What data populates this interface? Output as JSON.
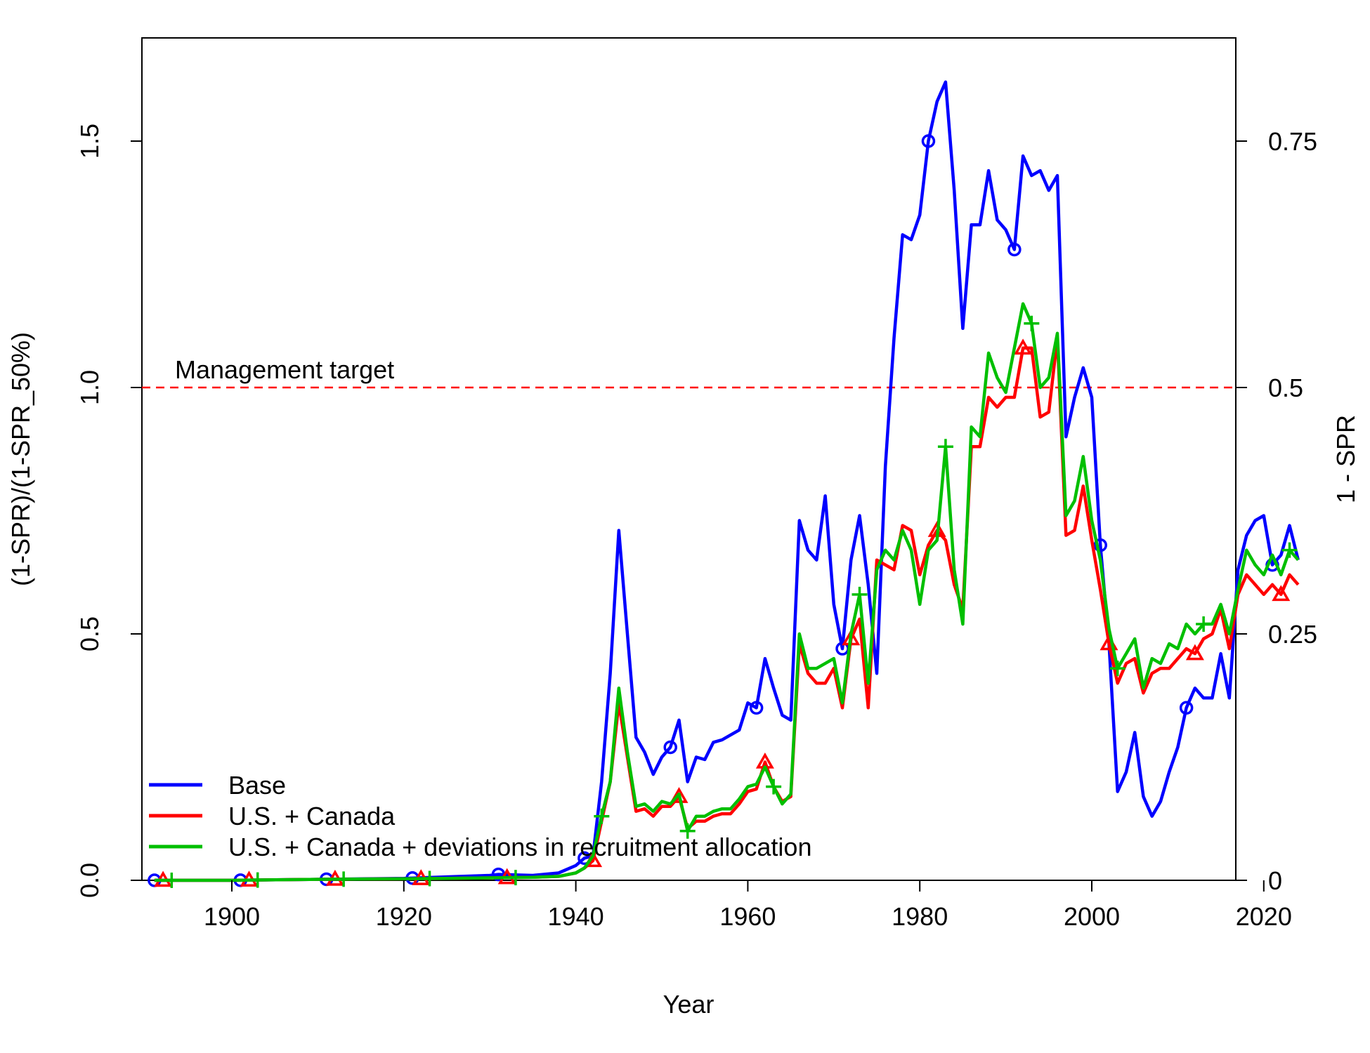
{
  "chart_data": {
    "type": "line",
    "xlabel": "Year",
    "ylabel_left": "(1-SPR)/(1-SPR_50%)",
    "ylabel_right": "1 - SPR",
    "xlim": [
      1890,
      2024
    ],
    "ylim": [
      0,
      1.67
    ],
    "x_ticks": [
      1900,
      1920,
      1940,
      1960,
      1980,
      2000,
      2020
    ],
    "x_tick_labels": [
      "1900",
      "1920",
      "1940",
      "1960",
      "1980",
      "2000",
      "2020"
    ],
    "y_ticks_left": [
      0,
      0.5,
      1.0,
      1.5
    ],
    "y_tick_labels_left": [
      "0.0",
      "0.5",
      "1.0",
      "1.5"
    ],
    "y_ticks_right": [
      0,
      0.5,
      1.0,
      1.5
    ],
    "y_tick_labels_right": [
      "0",
      "0.25",
      "0.5",
      "0.75"
    ],
    "reference_line": {
      "y": 1.0,
      "label": "Management target",
      "color": "#ff0000",
      "style": "dashed"
    },
    "grid": false,
    "legend_position": "bottom-left",
    "series": [
      {
        "name": "Base",
        "color": "#0000ff",
        "marker": "circle",
        "points": [
          [
            1891,
            0
          ],
          [
            1900,
            0
          ],
          [
            1910,
            0.002
          ],
          [
            1920,
            0.004
          ],
          [
            1930,
            0.01
          ],
          [
            1931,
            0.012
          ],
          [
            1935,
            0.01
          ],
          [
            1938,
            0.015
          ],
          [
            1940,
            0.03
          ],
          [
            1941,
            0.045
          ],
          [
            1942,
            0.05
          ],
          [
            1943,
            0.2
          ],
          [
            1944,
            0.42
          ],
          [
            1945,
            0.71
          ],
          [
            1946,
            0.5
          ],
          [
            1947,
            0.29
          ],
          [
            1948,
            0.26
          ],
          [
            1949,
            0.215
          ],
          [
            1950,
            0.25
          ],
          [
            1951,
            0.27
          ],
          [
            1952,
            0.325
          ],
          [
            1953,
            0.2
          ],
          [
            1954,
            0.25
          ],
          [
            1955,
            0.245
          ],
          [
            1956,
            0.28
          ],
          [
            1957,
            0.285
          ],
          [
            1958,
            0.295
          ],
          [
            1959,
            0.305
          ],
          [
            1960,
            0.36
          ],
          [
            1961,
            0.35
          ],
          [
            1962,
            0.45
          ],
          [
            1963,
            0.39
          ],
          [
            1964,
            0.335
          ],
          [
            1965,
            0.325
          ],
          [
            1966,
            0.73
          ],
          [
            1967,
            0.67
          ],
          [
            1968,
            0.65
          ],
          [
            1969,
            0.78
          ],
          [
            1970,
            0.56
          ],
          [
            1971,
            0.47
          ],
          [
            1972,
            0.65
          ],
          [
            1973,
            0.74
          ],
          [
            1974,
            0.6
          ],
          [
            1975,
            0.42
          ],
          [
            1976,
            0.84
          ],
          [
            1977,
            1.1
          ],
          [
            1978,
            1.31
          ],
          [
            1979,
            1.3
          ],
          [
            1980,
            1.35
          ],
          [
            1981,
            1.5
          ],
          [
            1982,
            1.58
          ],
          [
            1983,
            1.62
          ],
          [
            1984,
            1.4
          ],
          [
            1985,
            1.12
          ],
          [
            1986,
            1.33
          ],
          [
            1987,
            1.33
          ],
          [
            1988,
            1.44
          ],
          [
            1989,
            1.34
          ],
          [
            1990,
            1.32
          ],
          [
            1991,
            1.28
          ],
          [
            1992,
            1.47
          ],
          [
            1993,
            1.43
          ],
          [
            1994,
            1.44
          ],
          [
            1995,
            1.4
          ],
          [
            1996,
            1.43
          ],
          [
            1997,
            0.9
          ],
          [
            1998,
            0.98
          ],
          [
            1999,
            1.04
          ],
          [
            2000,
            0.98
          ],
          [
            2001,
            0.68
          ],
          [
            2002,
            0.48
          ],
          [
            2003,
            0.18
          ],
          [
            2004,
            0.22
          ],
          [
            2005,
            0.3
          ],
          [
            2006,
            0.17
          ],
          [
            2007,
            0.13
          ],
          [
            2008,
            0.16
          ],
          [
            2009,
            0.22
          ],
          [
            2010,
            0.27
          ],
          [
            2011,
            0.35
          ],
          [
            2012,
            0.39
          ],
          [
            2013,
            0.37
          ],
          [
            2014,
            0.37
          ],
          [
            2015,
            0.46
          ],
          [
            2016,
            0.37
          ],
          [
            2017,
            0.63
          ],
          [
            2018,
            0.7
          ],
          [
            2019,
            0.73
          ],
          [
            2020,
            0.74
          ],
          [
            2021,
            0.64
          ],
          [
            2022,
            0.66
          ],
          [
            2023,
            0.72
          ],
          [
            2024,
            0.65
          ]
        ],
        "marker_x": [
          1891,
          1901,
          1911,
          1921,
          1931,
          1941,
          1951,
          1961,
          1971,
          1981,
          1991,
          2001,
          2011,
          2021
        ]
      },
      {
        "name": "U.S. + Canada",
        "color": "#ff0000",
        "marker": "triangle",
        "points": [
          [
            1891,
            0
          ],
          [
            1900,
            0
          ],
          [
            1910,
            0.002
          ],
          [
            1920,
            0.003
          ],
          [
            1930,
            0.005
          ],
          [
            1935,
            0.006
          ],
          [
            1938,
            0.008
          ],
          [
            1940,
            0.015
          ],
          [
            1941,
            0.025
          ],
          [
            1942,
            0.04
          ],
          [
            1943,
            0.12
          ],
          [
            1944,
            0.2
          ],
          [
            1945,
            0.36
          ],
          [
            1946,
            0.25
          ],
          [
            1947,
            0.14
          ],
          [
            1948,
            0.145
          ],
          [
            1949,
            0.13
          ],
          [
            1950,
            0.15
          ],
          [
            1951,
            0.15
          ],
          [
            1952,
            0.17
          ],
          [
            1953,
            0.105
          ],
          [
            1954,
            0.12
          ],
          [
            1955,
            0.12
          ],
          [
            1956,
            0.13
          ],
          [
            1957,
            0.135
          ],
          [
            1958,
            0.135
          ],
          [
            1959,
            0.155
          ],
          [
            1960,
            0.18
          ],
          [
            1961,
            0.185
          ],
          [
            1962,
            0.24
          ],
          [
            1963,
            0.19
          ],
          [
            1964,
            0.16
          ],
          [
            1965,
            0.17
          ],
          [
            1966,
            0.48
          ],
          [
            1967,
            0.42
          ],
          [
            1968,
            0.4
          ],
          [
            1969,
            0.4
          ],
          [
            1970,
            0.43
          ],
          [
            1971,
            0.35
          ],
          [
            1972,
            0.49
          ],
          [
            1973,
            0.53
          ],
          [
            1974,
            0.35
          ],
          [
            1975,
            0.65
          ],
          [
            1976,
            0.64
          ],
          [
            1977,
            0.63
          ],
          [
            1978,
            0.72
          ],
          [
            1979,
            0.71
          ],
          [
            1980,
            0.62
          ],
          [
            1981,
            0.68
          ],
          [
            1982,
            0.71
          ],
          [
            1983,
            0.69
          ],
          [
            1984,
            0.6
          ],
          [
            1985,
            0.55
          ],
          [
            1986,
            0.88
          ],
          [
            1987,
            0.88
          ],
          [
            1988,
            0.98
          ],
          [
            1989,
            0.96
          ],
          [
            1990,
            0.98
          ],
          [
            1991,
            0.98
          ],
          [
            1992,
            1.08
          ],
          [
            1993,
            1.08
          ],
          [
            1994,
            0.94
          ],
          [
            1995,
            0.95
          ],
          [
            1996,
            1.1
          ],
          [
            1997,
            0.7
          ],
          [
            1998,
            0.71
          ],
          [
            1999,
            0.8
          ],
          [
            2000,
            0.69
          ],
          [
            2001,
            0.59
          ],
          [
            2002,
            0.48
          ],
          [
            2003,
            0.4
          ],
          [
            2004,
            0.44
          ],
          [
            2005,
            0.45
          ],
          [
            2006,
            0.38
          ],
          [
            2007,
            0.42
          ],
          [
            2008,
            0.43
          ],
          [
            2009,
            0.43
          ],
          [
            2010,
            0.45
          ],
          [
            2011,
            0.47
          ],
          [
            2012,
            0.46
          ],
          [
            2013,
            0.49
          ],
          [
            2014,
            0.5
          ],
          [
            2015,
            0.55
          ],
          [
            2016,
            0.47
          ],
          [
            2017,
            0.58
          ],
          [
            2018,
            0.62
          ],
          [
            2019,
            0.6
          ],
          [
            2020,
            0.58
          ],
          [
            2021,
            0.6
          ],
          [
            2022,
            0.58
          ],
          [
            2023,
            0.62
          ],
          [
            2024,
            0.6
          ]
        ],
        "marker_x": [
          1892,
          1902,
          1912,
          1922,
          1932,
          1942,
          1952,
          1962,
          1972,
          1982,
          1992,
          2002,
          2012,
          2022
        ]
      },
      {
        "name": "U.S. + Canada + deviations in recruitment allocation",
        "color": "#00bf00",
        "marker": "plus",
        "points": [
          [
            1891,
            0
          ],
          [
            1900,
            0
          ],
          [
            1910,
            0.002
          ],
          [
            1920,
            0.003
          ],
          [
            1930,
            0.005
          ],
          [
            1935,
            0.006
          ],
          [
            1938,
            0.008
          ],
          [
            1940,
            0.015
          ],
          [
            1941,
            0.025
          ],
          [
            1942,
            0.05
          ],
          [
            1943,
            0.13
          ],
          [
            1944,
            0.2
          ],
          [
            1945,
            0.39
          ],
          [
            1946,
            0.26
          ],
          [
            1947,
            0.15
          ],
          [
            1948,
            0.155
          ],
          [
            1949,
            0.14
          ],
          [
            1950,
            0.16
          ],
          [
            1951,
            0.155
          ],
          [
            1952,
            0.175
          ],
          [
            1953,
            0.1
          ],
          [
            1954,
            0.13
          ],
          [
            1955,
            0.13
          ],
          [
            1956,
            0.14
          ],
          [
            1957,
            0.145
          ],
          [
            1958,
            0.145
          ],
          [
            1959,
            0.165
          ],
          [
            1960,
            0.19
          ],
          [
            1961,
            0.195
          ],
          [
            1962,
            0.23
          ],
          [
            1963,
            0.19
          ],
          [
            1964,
            0.155
          ],
          [
            1965,
            0.175
          ],
          [
            1966,
            0.5
          ],
          [
            1967,
            0.43
          ],
          [
            1968,
            0.43
          ],
          [
            1969,
            0.44
          ],
          [
            1970,
            0.45
          ],
          [
            1971,
            0.36
          ],
          [
            1972,
            0.5
          ],
          [
            1973,
            0.58
          ],
          [
            1974,
            0.4
          ],
          [
            1975,
            0.63
          ],
          [
            1976,
            0.67
          ],
          [
            1977,
            0.65
          ],
          [
            1978,
            0.71
          ],
          [
            1979,
            0.67
          ],
          [
            1980,
            0.56
          ],
          [
            1981,
            0.67
          ],
          [
            1982,
            0.69
          ],
          [
            1983,
            0.88
          ],
          [
            1984,
            0.63
          ],
          [
            1985,
            0.52
          ],
          [
            1986,
            0.92
          ],
          [
            1987,
            0.9
          ],
          [
            1988,
            1.07
          ],
          [
            1989,
            1.02
          ],
          [
            1990,
            0.99
          ],
          [
            1991,
            1.08
          ],
          [
            1992,
            1.17
          ],
          [
            1993,
            1.13
          ],
          [
            1994,
            1.0
          ],
          [
            1995,
            1.02
          ],
          [
            1996,
            1.11
          ],
          [
            1997,
            0.74
          ],
          [
            1998,
            0.77
          ],
          [
            1999,
            0.86
          ],
          [
            2000,
            0.73
          ],
          [
            2001,
            0.65
          ],
          [
            2002,
            0.51
          ],
          [
            2003,
            0.43
          ],
          [
            2004,
            0.46
          ],
          [
            2005,
            0.49
          ],
          [
            2006,
            0.39
          ],
          [
            2007,
            0.45
          ],
          [
            2008,
            0.44
          ],
          [
            2009,
            0.48
          ],
          [
            2010,
            0.47
          ],
          [
            2011,
            0.52
          ],
          [
            2012,
            0.5
          ],
          [
            2013,
            0.52
          ],
          [
            2014,
            0.52
          ],
          [
            2015,
            0.56
          ],
          [
            2016,
            0.5
          ],
          [
            2017,
            0.59
          ],
          [
            2018,
            0.67
          ],
          [
            2019,
            0.64
          ],
          [
            2020,
            0.62
          ],
          [
            2021,
            0.66
          ],
          [
            2022,
            0.62
          ],
          [
            2023,
            0.67
          ],
          [
            2024,
            0.65
          ]
        ],
        "marker_x": [
          1893,
          1903,
          1913,
          1923,
          1933,
          1943,
          1953,
          1963,
          1973,
          1983,
          1993,
          2003,
          2013,
          2023
        ]
      }
    ]
  }
}
